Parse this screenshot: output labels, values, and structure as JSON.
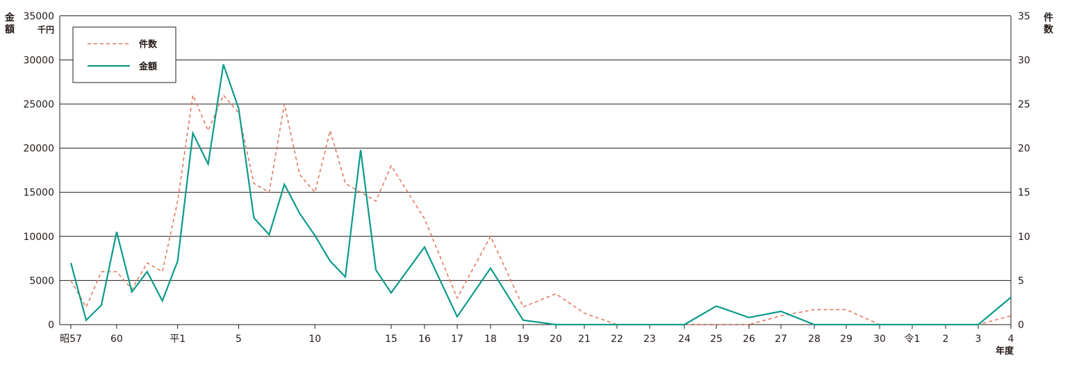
{
  "chart_data": {
    "type": "line",
    "left_axis": {
      "label_chars": [
        "金",
        "額"
      ],
      "unit": "千円",
      "ticks": [
        "35000",
        "30000",
        "25000",
        "20000",
        "15000",
        "10000",
        "5000",
        "0"
      ],
      "ylim": [
        0,
        35000
      ]
    },
    "right_axis": {
      "label_chars": [
        "件",
        "数"
      ],
      "ticks": [
        "35",
        "30",
        "25",
        "20",
        "15",
        "10",
        "5",
        "0"
      ],
      "ylim": [
        0,
        35
      ]
    },
    "x_labels": [
      {
        "label": "昭57",
        "index": 0
      },
      {
        "label": "60",
        "index": 3
      },
      {
        "label": "平1",
        "index": 7
      },
      {
        "label": "5",
        "index": 11
      },
      {
        "label": "10",
        "index": 16
      },
      {
        "label": "15",
        "index": 21
      },
      {
        "label": "16",
        "index": 22
      },
      {
        "label": "17",
        "index": 23
      },
      {
        "label": "18",
        "index": 24
      },
      {
        "label": "19",
        "index": 25
      },
      {
        "label": "20",
        "index": 26
      },
      {
        "label": "21",
        "index": 27
      },
      {
        "label": "22",
        "index": 28
      },
      {
        "label": "23",
        "index": 29
      },
      {
        "label": "24",
        "index": 30
      },
      {
        "label": "25",
        "index": 31
      },
      {
        "label": "26",
        "index": 32
      },
      {
        "label": "27",
        "index": 33
      },
      {
        "label": "28",
        "index": 34
      },
      {
        "label": "29",
        "index": 35
      },
      {
        "label": "30",
        "index": 36
      },
      {
        "label": "令1",
        "index": 37
      },
      {
        "label": "2",
        "index": 38
      },
      {
        "label": "3",
        "index": 39
      },
      {
        "label": "4",
        "index": 40
      }
    ],
    "x_axis_title": "年度",
    "grid": true,
    "legend_position": "top-left",
    "series": [
      {
        "name": "件数",
        "axis": "right",
        "style": "dashed",
        "color": "#e07a5f",
        "values": [
          5,
          2,
          6,
          6,
          4,
          7,
          6,
          14,
          26,
          22,
          26,
          24,
          16,
          15,
          25,
          17,
          15,
          22,
          16,
          15,
          14,
          18,
          12,
          3,
          10,
          2,
          3.5,
          1.3,
          0,
          0,
          0,
          0,
          0,
          1,
          1.7,
          1.7,
          0,
          0,
          0,
          0,
          1
        ]
      },
      {
        "name": "金額",
        "axis": "left",
        "style": "solid",
        "color": "#0a9a8a",
        "values": [
          7000,
          500,
          2200,
          10500,
          3700,
          6000,
          2700,
          7200,
          21700,
          18200,
          29500,
          24500,
          12100,
          10200,
          15900,
          12600,
          10100,
          7200,
          5400,
          19800,
          6200,
          3600,
          8800,
          900,
          6400,
          500,
          0,
          0,
          0,
          0,
          0,
          2100,
          800,
          1500,
          0,
          0,
          0,
          0,
          0,
          0,
          3100
        ]
      }
    ]
  }
}
